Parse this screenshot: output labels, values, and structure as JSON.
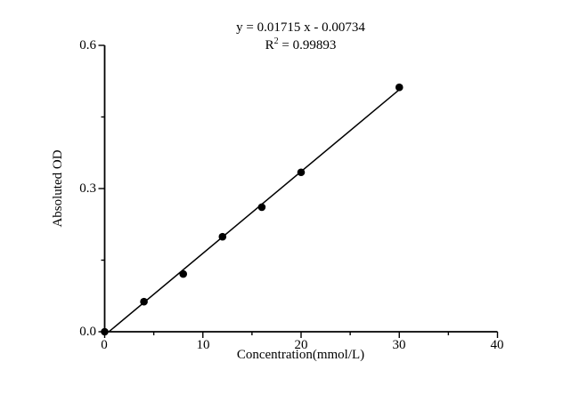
{
  "chart_data": {
    "type": "scatter",
    "title": "y = 0.01715 x - 0.00734; R^2 = 0.99893",
    "xlabel": "Concentration(mmol/L)",
    "ylabel": "Absoluted OD",
    "xlim": [
      0,
      40
    ],
    "ylim": [
      0,
      0.6
    ],
    "grid": false,
    "legend": "none",
    "x_major_ticks": [
      0,
      10,
      20,
      30,
      40
    ],
    "x_tick_labels": [
      "0",
      "10",
      "20",
      "30",
      "40"
    ],
    "x_minor_ticks": [
      5,
      15,
      25,
      35
    ],
    "y_major_ticks": [
      0,
      0.3,
      0.6
    ],
    "y_tick_labels": [
      "0.0",
      "0.3",
      "0.6"
    ],
    "y_minor_ticks": [
      0.15,
      0.45
    ],
    "points": {
      "x": [
        0,
        4,
        8,
        12,
        16,
        20,
        30
      ],
      "y": [
        0.0,
        0.063,
        0.121,
        0.199,
        0.261,
        0.334,
        0.512
      ]
    },
    "fit_line": {
      "slope": 0.01715,
      "intercept": -0.00734,
      "x_start": 0.43,
      "x_end": 30,
      "r_squared": 0.99893
    },
    "marker_color": "#000000",
    "line_color": "#000000",
    "axis_color": "#000000",
    "annotations": {
      "equation": "y = 0.01715 x - 0.00734",
      "r_squared_prefix": "R",
      "r_squared_sup": "2",
      "r_squared_rest": " = 0.99893"
    }
  }
}
